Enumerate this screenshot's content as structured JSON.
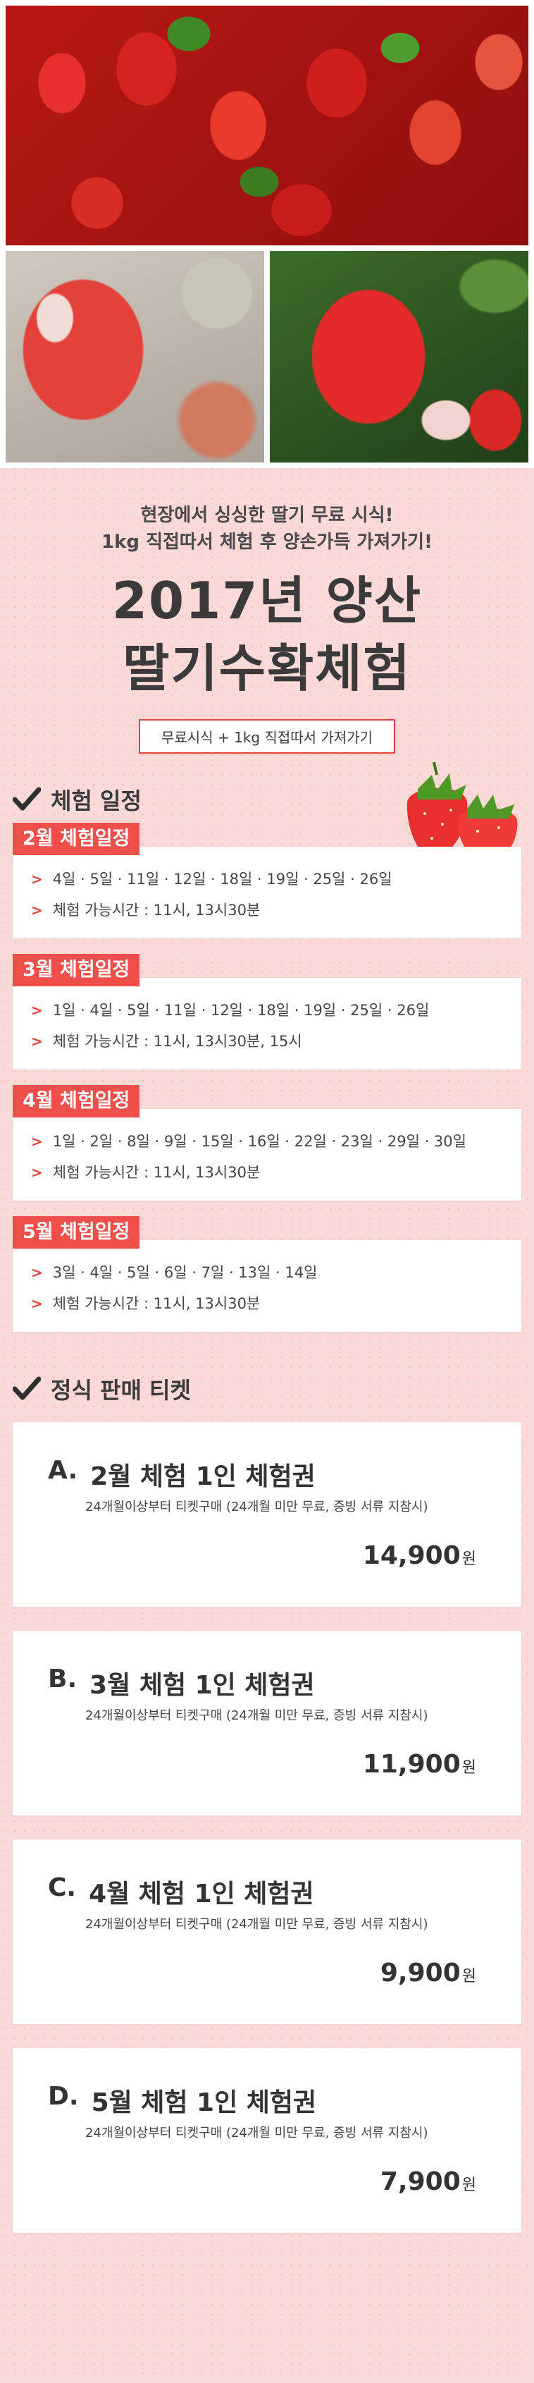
{
  "intro": {
    "line1": "현장에서 싱싱한 딸기 무료 시식!",
    "line2": "1kg 직접따서 체험 후 양손가득 가져가기!",
    "title1": "2017년 양산",
    "title2": "딸기수확체험",
    "badge": "무료시식 + 1kg 직접따서 가져가기"
  },
  "schedule": {
    "heading": "체험 일정",
    "months": [
      {
        "tag": "2월 체험일정",
        "dates": "4일 · 5일 · 11일 · 12일 · 18일 · 19일 · 25일 · 26일",
        "times": "체험 가능시간 : 11시, 13시30분"
      },
      {
        "tag": "3월 체험일정",
        "dates": "1일 · 4일 · 5일 · 11일 · 12일 · 18일 · 19일 · 25일 · 26일",
        "times": "체험 가능시간 : 11시, 13시30분, 15시"
      },
      {
        "tag": "4월 체험일정",
        "dates": "1일 · 2일 · 8일 · 9일 · 15일 · 16일 · 22일 · 23일 · 29일 · 30일",
        "times": "체험 가능시간 : 11시, 13시30분"
      },
      {
        "tag": "5월 체험일정",
        "dates": "3일 · 4일 · 5일 · 6일 · 7일 · 13일 · 14일",
        "times": "체험 가능시간 : 11시, 13시30분"
      }
    ]
  },
  "tickets": {
    "heading": "정식 판매 티켓",
    "items": [
      {
        "letter": "A.",
        "name": "2월 체험 1인 체험권",
        "desc": "24개월이상부터 티켓구매 (24개월 미만 무료, 증빙 서류 지참시)",
        "price": "14,900",
        "won": "원"
      },
      {
        "letter": "B.",
        "name": "3월 체험 1인 체험권",
        "desc": "24개월이상부터 티켓구매 (24개월 미만 무료, 증빙 서류 지참시)",
        "price": "11,900",
        "won": "원"
      },
      {
        "letter": "C.",
        "name": "4월 체험 1인 체험권",
        "desc": "24개월이상부터 티켓구매 (24개월 미만 무료, 증빙 서류 지참시)",
        "price": "9,900",
        "won": "원"
      },
      {
        "letter": "D.",
        "name": "5월 체험 1인 체험권",
        "desc": "24개월이상부터 티켓구매 (24개월 미만 무료, 증빙 서류 지참시)",
        "price": "7,900",
        "won": "원"
      }
    ]
  },
  "colors": {
    "accent": "#ef4f4b",
    "background": "#fbd9d6",
    "text": "#3a3a3a"
  }
}
